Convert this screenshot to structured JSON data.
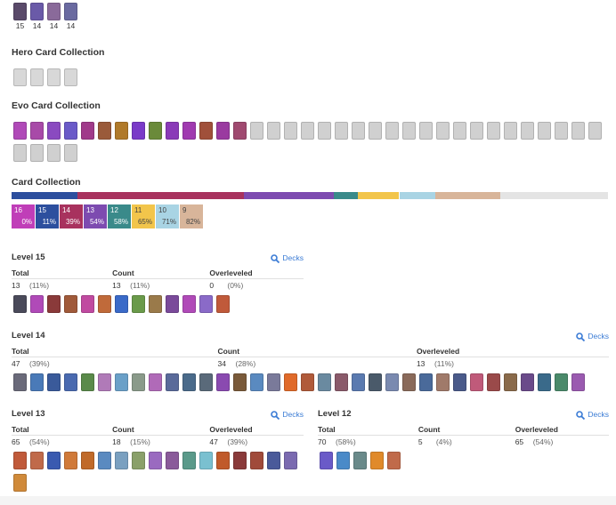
{
  "top_cards": [
    {
      "level": 15,
      "color": "#5a4a6a"
    },
    {
      "level": 14,
      "color": "#6a5aa8"
    },
    {
      "level": 14,
      "color": "#8a6a9a"
    },
    {
      "level": 14,
      "color": "#6a6aa0"
    }
  ],
  "hero": {
    "title": "Hero Card Collection",
    "icons": [
      "#d8d8d8",
      "#d8d8d8",
      "#d8d8d8",
      "#d8d8d8"
    ]
  },
  "evo": {
    "title": "Evo Card Collection",
    "icons": [
      "#b04ab8",
      "#a84aa8",
      "#8a4ac0",
      "#6a5ac8",
      "#a03a8a",
      "#9a5a3a",
      "#b07a2a",
      "#7a3ac8",
      "#6a8a3a",
      "#8a3ab8",
      "#a03ab0",
      "#a0503a",
      "#9a3aa0",
      "#a04a70",
      "#d0d0d0",
      "#d0d0d0",
      "#d0d0d0",
      "#d0d0d0",
      "#d0d0d0",
      "#d0d0d0",
      "#d0d0d0",
      "#d0d0d0",
      "#d0d0d0",
      "#d0d0d0",
      "#d0d0d0",
      "#d0d0d0",
      "#d0d0d0",
      "#d0d0d0",
      "#d0d0d0",
      "#d0d0d0",
      "#d0d0d0",
      "#d0d0d0",
      "#d0d0d0",
      "#d0d0d0",
      "#d0d0d0",
      "#d0d0d0",
      "#d0d0d0",
      "#d0d0d0",
      "#d0d0d0"
    ]
  },
  "collection": {
    "title": "Card Collection",
    "segments": [
      {
        "color": "#2d4f9e",
        "value": 11
      },
      {
        "color": "#a8325e",
        "value": 28
      },
      {
        "color": "#7d4bb0",
        "value": 15
      },
      {
        "color": "#3a8a8a",
        "value": 4
      },
      {
        "color": "#f2c54b",
        "value": 7
      },
      {
        "color": "#a9d4e4",
        "value": 6
      },
      {
        "color": "#d8b59a",
        "value": 11
      },
      {
        "color": "#e4e4e4",
        "value": 18
      }
    ],
    "legend": [
      {
        "level": 16,
        "percent": "0%",
        "color": "#c03eb8"
      },
      {
        "level": 15,
        "percent": "11%",
        "color": "#2d4f9e"
      },
      {
        "level": 14,
        "percent": "39%",
        "color": "#a8325e"
      },
      {
        "level": 13,
        "percent": "54%",
        "color": "#7d4bb0"
      },
      {
        "level": 12,
        "percent": "58%",
        "color": "#3a8a8a"
      },
      {
        "level": 11,
        "percent": "65%",
        "color": "#f2c54b"
      },
      {
        "level": 10,
        "percent": "71%",
        "color": "#a9d4e4"
      },
      {
        "level": 9,
        "percent": "82%",
        "color": "#d8b59a"
      }
    ]
  },
  "levels": [
    {
      "title": "Level 15",
      "link": "Decks",
      "stats": [
        {
          "label": "Total",
          "value": 13,
          "percent": "(11%)"
        },
        {
          "label": "Count",
          "value": 13,
          "percent": "(11%)"
        },
        {
          "label": "Overleveled",
          "value": 0,
          "percent": "(0%)"
        }
      ],
      "icons": [
        "#4a4a5a",
        "#b04ab8",
        "#8a3a3a",
        "#a05a3a",
        "#c04aa0",
        "#c06a3a",
        "#3a6ac8",
        "#6a9a4a",
        "#9a7a4a",
        "#7a4a9a",
        "#b04ab8",
        "#8a6ac8",
        "#c05a3a"
      ]
    },
    {
      "title": "Level 14",
      "link": "Decks",
      "stats": [
        {
          "label": "Total",
          "value": 47,
          "percent": "(39%)"
        },
        {
          "label": "Count",
          "value": 34,
          "percent": "(28%)"
        },
        {
          "label": "Overleveled",
          "value": 13,
          "percent": "(11%)"
        }
      ],
      "icons": [
        "#6a6a7a",
        "#4a7ab8",
        "#3a5a9a",
        "#4a6ab0",
        "#5a8a4a",
        "#b07ab8",
        "#6aa0c8",
        "#8a9a8a",
        "#b06ab8",
        "#5a6a9a",
        "#4a6a8a",
        "#5a6a7a",
        "#8a4ab0",
        "#7a5a3a",
        "#5a8ac0",
        "#7a7a9a",
        "#e06a2a",
        "#b05a3a",
        "#6a8aa0",
        "#8a5a6a",
        "#5a7ab0",
        "#4a5a6a",
        "#7a8ab0",
        "#8a6a5a",
        "#4a6a9a",
        "#a07a6a",
        "#4a5a8a",
        "#c05a7a",
        "#9a4a4a",
        "#8a6a4a",
        "#6a4a8a",
        "#3a6a8a",
        "#4a8a6a",
        "#9a5ab0"
      ]
    },
    {
      "title": "Level 13",
      "link": "Decks",
      "stats": [
        {
          "label": "Total",
          "value": 65,
          "percent": "(54%)"
        },
        {
          "label": "Count",
          "value": 18,
          "percent": "(15%)"
        },
        {
          "label": "Overleveled",
          "value": 47,
          "percent": "(39%)"
        }
      ],
      "icons": [
        "#c05a3a",
        "#c06a4a",
        "#3a5ab0",
        "#d07a3a",
        "#c06a2a",
        "#5a8ac0",
        "#7aa0c0",
        "#8aa06a",
        "#9a6ac0",
        "#8a5a9a",
        "#5a9a8a",
        "#7ac0d0",
        "#c05a2a",
        "#8a3a3a",
        "#a04a3a",
        "#4a5a9a",
        "#7a6ab0",
        "#d08a3a"
      ]
    },
    {
      "title": "Level 12",
      "link": "Decks",
      "stats": [
        {
          "label": "Total",
          "value": 70,
          "percent": "(58%)"
        },
        {
          "label": "Count",
          "value": 5,
          "percent": "(4%)"
        },
        {
          "label": "Overleveled",
          "value": 65,
          "percent": "(54%)"
        }
      ],
      "icons": [
        "#6a5ac8",
        "#4a8ac8",
        "#6a8a8a",
        "#e08a2a",
        "#c06a4a"
      ]
    }
  ]
}
